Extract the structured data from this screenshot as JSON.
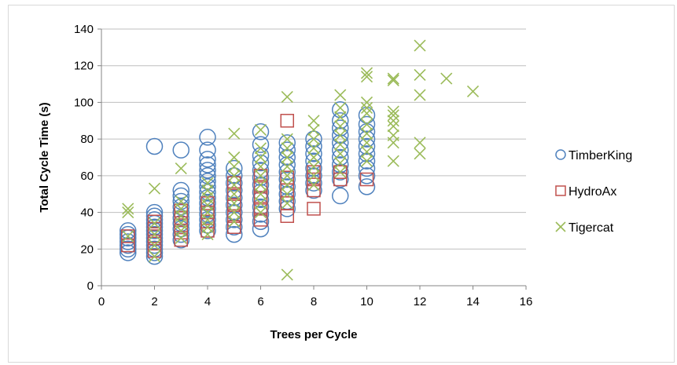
{
  "chart_data": {
    "type": "scatter",
    "xlabel": "Trees per Cycle",
    "ylabel": "Total Cycle Time (s)",
    "xlim": [
      0,
      16
    ],
    "ylim": [
      0,
      140
    ],
    "xticks": [
      0,
      2,
      4,
      6,
      8,
      10,
      12,
      14,
      16
    ],
    "yticks": [
      0,
      20,
      40,
      60,
      80,
      100,
      120,
      140
    ],
    "grid": "horizontal",
    "legend_position": "right",
    "series": [
      {
        "name": "TimberKing",
        "marker": "circle",
        "color": "#4f81bd",
        "points": [
          [
            1,
            18
          ],
          [
            1,
            20
          ],
          [
            1,
            22
          ],
          [
            1,
            24
          ],
          [
            1,
            26
          ],
          [
            1,
            28
          ],
          [
            1,
            30
          ],
          [
            2,
            16
          ],
          [
            2,
            18
          ],
          [
            2,
            20
          ],
          [
            2,
            22
          ],
          [
            2,
            24
          ],
          [
            2,
            26
          ],
          [
            2,
            28
          ],
          [
            2,
            30
          ],
          [
            2,
            32
          ],
          [
            2,
            34
          ],
          [
            2,
            36
          ],
          [
            2,
            38
          ],
          [
            2,
            40
          ],
          [
            2,
            76
          ],
          [
            3,
            25
          ],
          [
            3,
            28
          ],
          [
            3,
            31
          ],
          [
            3,
            34
          ],
          [
            3,
            37
          ],
          [
            3,
            40
          ],
          [
            3,
            43
          ],
          [
            3,
            46
          ],
          [
            3,
            49
          ],
          [
            3,
            52
          ],
          [
            3,
            74
          ],
          [
            4,
            30
          ],
          [
            4,
            33
          ],
          [
            4,
            36
          ],
          [
            4,
            39
          ],
          [
            4,
            42
          ],
          [
            4,
            45
          ],
          [
            4,
            48
          ],
          [
            4,
            51
          ],
          [
            4,
            54
          ],
          [
            4,
            57
          ],
          [
            4,
            60
          ],
          [
            4,
            63
          ],
          [
            4,
            66
          ],
          [
            4,
            69
          ],
          [
            4,
            74
          ],
          [
            4,
            81
          ],
          [
            5,
            28
          ],
          [
            5,
            32
          ],
          [
            5,
            36
          ],
          [
            5,
            40
          ],
          [
            5,
            44
          ],
          [
            5,
            48
          ],
          [
            5,
            52
          ],
          [
            5,
            56
          ],
          [
            5,
            60
          ],
          [
            5,
            64
          ],
          [
            6,
            31
          ],
          [
            6,
            35
          ],
          [
            6,
            39
          ],
          [
            6,
            43
          ],
          [
            6,
            47
          ],
          [
            6,
            51
          ],
          [
            6,
            55
          ],
          [
            6,
            59
          ],
          [
            6,
            63
          ],
          [
            6,
            67
          ],
          [
            6,
            71
          ],
          [
            6,
            77
          ],
          [
            6,
            84
          ],
          [
            7,
            42
          ],
          [
            7,
            46
          ],
          [
            7,
            50
          ],
          [
            7,
            54
          ],
          [
            7,
            58
          ],
          [
            7,
            62
          ],
          [
            7,
            66
          ],
          [
            7,
            70
          ],
          [
            7,
            74
          ],
          [
            7,
            78
          ],
          [
            8,
            52
          ],
          [
            8,
            56
          ],
          [
            8,
            60
          ],
          [
            8,
            64
          ],
          [
            8,
            68
          ],
          [
            8,
            72
          ],
          [
            8,
            76
          ],
          [
            8,
            80
          ],
          [
            9,
            49
          ],
          [
            9,
            58
          ],
          [
            9,
            62
          ],
          [
            9,
            66
          ],
          [
            9,
            70
          ],
          [
            9,
            74
          ],
          [
            9,
            78
          ],
          [
            9,
            82
          ],
          [
            9,
            86
          ],
          [
            9,
            90
          ],
          [
            9,
            96
          ],
          [
            10,
            54
          ],
          [
            10,
            60
          ],
          [
            10,
            64
          ],
          [
            10,
            68
          ],
          [
            10,
            72
          ],
          [
            10,
            76
          ],
          [
            10,
            80
          ],
          [
            10,
            84
          ],
          [
            10,
            88
          ],
          [
            10,
            93
          ]
        ]
      },
      {
        "name": "HydroAx",
        "marker": "square",
        "color": "#c0504d",
        "points": [
          [
            1,
            22
          ],
          [
            1,
            27
          ],
          [
            2,
            19
          ],
          [
            2,
            23
          ],
          [
            2,
            27
          ],
          [
            2,
            31
          ],
          [
            2,
            35
          ],
          [
            3,
            25
          ],
          [
            3,
            29
          ],
          [
            3,
            33
          ],
          [
            3,
            37
          ],
          [
            3,
            41
          ],
          [
            4,
            30
          ],
          [
            4,
            35
          ],
          [
            4,
            40
          ],
          [
            4,
            45
          ],
          [
            5,
            32
          ],
          [
            5,
            38
          ],
          [
            5,
            44
          ],
          [
            5,
            50
          ],
          [
            5,
            56
          ],
          [
            6,
            36
          ],
          [
            6,
            42
          ],
          [
            6,
            48
          ],
          [
            6,
            54
          ],
          [
            6,
            60
          ],
          [
            7,
            38
          ],
          [
            7,
            45
          ],
          [
            7,
            52
          ],
          [
            7,
            59
          ],
          [
            7,
            90
          ],
          [
            8,
            42
          ],
          [
            8,
            52
          ],
          [
            8,
            58
          ],
          [
            8,
            62
          ],
          [
            9,
            58
          ],
          [
            9,
            62
          ],
          [
            10,
            58
          ]
        ]
      },
      {
        "name": "Tigercat",
        "marker": "x",
        "color": "#9bbb59",
        "points": [
          [
            1,
            40
          ],
          [
            1,
            42
          ],
          [
            1,
            27
          ],
          [
            2,
            53
          ],
          [
            2,
            16
          ],
          [
            2,
            22
          ],
          [
            2,
            28
          ],
          [
            2,
            34
          ],
          [
            3,
            64
          ],
          [
            3,
            26
          ],
          [
            3,
            30
          ],
          [
            3,
            34
          ],
          [
            3,
            38
          ],
          [
            3,
            42
          ],
          [
            3,
            46
          ],
          [
            4,
            28
          ],
          [
            4,
            32
          ],
          [
            4,
            36
          ],
          [
            4,
            40
          ],
          [
            4,
            44
          ],
          [
            4,
            48
          ],
          [
            4,
            52
          ],
          [
            4,
            56
          ],
          [
            5,
            83
          ],
          [
            5,
            70
          ],
          [
            5,
            35
          ],
          [
            5,
            40
          ],
          [
            5,
            45
          ],
          [
            5,
            50
          ],
          [
            5,
            55
          ],
          [
            5,
            60
          ],
          [
            5,
            65
          ],
          [
            6,
            85
          ],
          [
            6,
            75
          ],
          [
            6,
            40
          ],
          [
            6,
            45
          ],
          [
            6,
            50
          ],
          [
            6,
            55
          ],
          [
            6,
            60
          ],
          [
            6,
            65
          ],
          [
            6,
            70
          ],
          [
            7,
            103
          ],
          [
            7,
            6
          ],
          [
            7,
            45
          ],
          [
            7,
            50
          ],
          [
            7,
            55
          ],
          [
            7,
            60
          ],
          [
            7,
            65
          ],
          [
            7,
            70
          ],
          [
            7,
            75
          ],
          [
            7,
            80
          ],
          [
            8,
            90
          ],
          [
            8,
            55
          ],
          [
            8,
            60
          ],
          [
            8,
            65
          ],
          [
            8,
            70
          ],
          [
            8,
            75
          ],
          [
            8,
            80
          ],
          [
            8,
            85
          ],
          [
            9,
            104
          ],
          [
            9,
            62
          ],
          [
            9,
            67
          ],
          [
            9,
            72
          ],
          [
            9,
            77
          ],
          [
            9,
            82
          ],
          [
            9,
            87
          ],
          [
            9,
            92
          ],
          [
            9,
            97
          ],
          [
            10,
            116
          ],
          [
            10,
            114
          ],
          [
            10,
            100
          ],
          [
            10,
            97
          ],
          [
            10,
            94
          ],
          [
            10,
            68
          ],
          [
            10,
            73
          ],
          [
            10,
            78
          ],
          [
            10,
            83
          ],
          [
            10,
            88
          ],
          [
            11,
            113
          ],
          [
            11,
            112
          ],
          [
            11,
            95
          ],
          [
            11,
            93
          ],
          [
            11,
            90
          ],
          [
            11,
            87
          ],
          [
            11,
            82
          ],
          [
            11,
            78
          ],
          [
            11,
            68
          ],
          [
            12,
            131
          ],
          [
            12,
            115
          ],
          [
            12,
            104
          ],
          [
            12,
            78
          ],
          [
            12,
            72
          ],
          [
            13,
            113
          ],
          [
            14,
            106
          ]
        ]
      }
    ]
  }
}
